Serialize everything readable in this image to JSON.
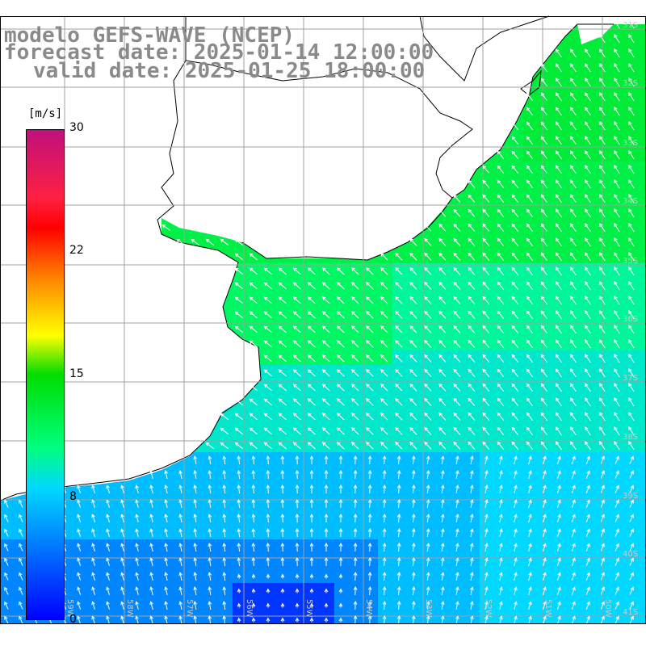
{
  "title": {
    "line1": "modelo GEFS-WAVE (NCEP)",
    "line2": "forecast date: 2025-01-14 12:00:00",
    "line3": "valid date: 2025-01-25 18:00:00"
  },
  "colorbar": {
    "units": "[m/s]",
    "ticks": [
      "30",
      "22",
      "15",
      "8",
      "0"
    ],
    "tick_values": [
      30,
      22,
      15,
      8,
      0
    ],
    "min": 0,
    "max": 30
  },
  "lat_labels": [
    "31S",
    "32S",
    "33S",
    "34S",
    "35S",
    "36S",
    "37S",
    "38S",
    "39S",
    "40S",
    "41S"
  ],
  "lon_labels": [
    "59W",
    "58W",
    "57W",
    "56W",
    "55W",
    "54W",
    "53W",
    "52W",
    "51W",
    "50W"
  ],
  "colors": {
    "land": "#ffffff",
    "coast": "#000000",
    "grid": "#a0a0a0",
    "arrow": "#ffffff",
    "title": "#8a8a8a"
  }
}
